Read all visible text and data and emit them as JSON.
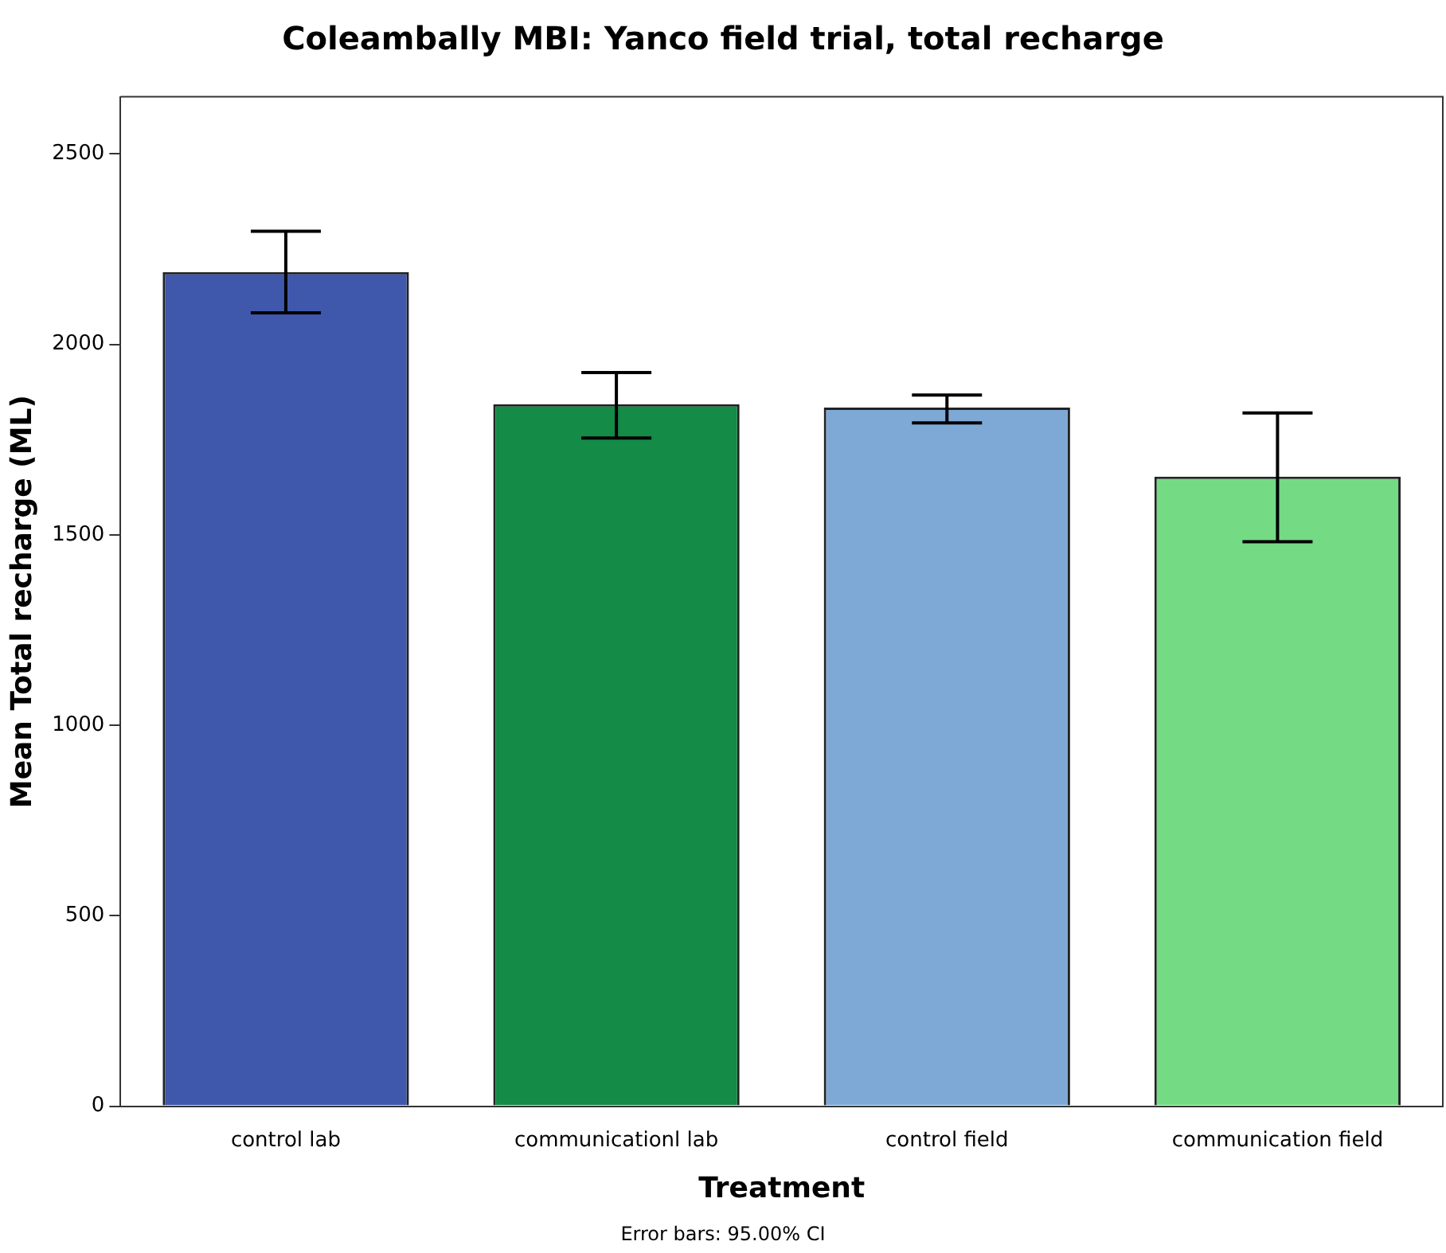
{
  "chart_data": {
    "type": "bar",
    "title": "Coleambally MBI: Yanco field trial, total recharge",
    "xlabel": "Treatment",
    "ylabel": "Mean Total recharge (ML)",
    "categories": [
      "control lab",
      "communicationl lab",
      "control field",
      "communication field"
    ],
    "values": [
      2190,
      1843,
      1834,
      1653
    ],
    "colors": [
      "#3f58ac",
      "#148b47",
      "#7ea9d6",
      "#74da84"
    ],
    "errors": [
      [
        2083,
        2297
      ],
      [
        1754,
        1926
      ],
      [
        1794,
        1867
      ],
      [
        1482,
        1820
      ]
    ],
    "ylim": [
      0,
      2650
    ],
    "yticks": [
      0,
      500,
      1000,
      1500,
      2000,
      2500
    ],
    "grid": false,
    "legend": false,
    "annotations": [
      "Error bars: 95.00% CI"
    ]
  }
}
